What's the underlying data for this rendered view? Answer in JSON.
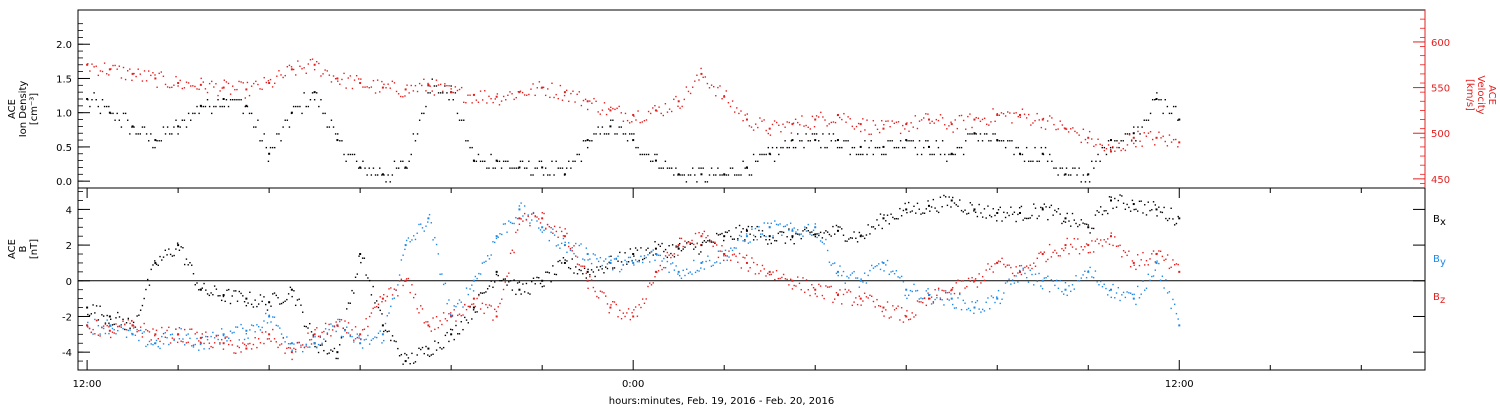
{
  "chart_data": [
    {
      "type": "scatter",
      "panel": "top",
      "ylabel_lines": [
        "ACE",
        "Ion Density",
        "[cm⁻³]"
      ],
      "y_ticks": [
        "0.0",
        "0.5",
        "1.0",
        "1.5",
        "2.0"
      ],
      "ylim": [
        -0.1,
        2.5
      ],
      "y2label_lines": [
        "ACE",
        "Velocity",
        "[km/s]"
      ],
      "y2_ticks": [
        "450",
        "500",
        "550",
        "600"
      ],
      "y2lim": [
        440,
        635
      ],
      "xlim_hours": [
        -0.2,
        29.4
      ],
      "colors": {
        "density": "#000000",
        "velocity": "#e32020"
      },
      "series": [
        {
          "axis": "left",
          "color": "#000000",
          "x_hours": [
            0,
            0.5,
            1,
            1.5,
            2,
            2.5,
            3,
            3.5,
            4,
            4.5,
            5,
            5.5,
            6,
            6.5,
            7,
            7.5,
            8,
            8.5,
            9,
            9.5,
            10,
            10.5,
            11,
            11.5,
            12,
            12.5,
            13,
            13.5,
            14,
            14.5,
            15,
            15.5,
            16,
            16.5,
            17,
            17.5,
            18,
            18.5,
            19,
            19.5,
            20,
            20.5,
            21,
            21.5,
            22,
            22.5,
            23,
            23.5,
            24
          ],
          "values": [
            1.2,
            1.0,
            0.8,
            0.6,
            0.8,
            1.1,
            1.2,
            1.1,
            0.4,
            1.0,
            1.3,
            0.6,
            0.2,
            0.1,
            0.2,
            1.4,
            1.3,
            0.3,
            0.3,
            0.2,
            0.2,
            0.1,
            0.6,
            0.8,
            0.6,
            0.3,
            0.1,
            0.1,
            0.1,
            0.2,
            0.4,
            0.6,
            0.6,
            0.6,
            0.5,
            0.5,
            0.6,
            0.5,
            0.4,
            0.7,
            0.6,
            0.4,
            0.4,
            0.1,
            0.1,
            0.6,
            0.7,
            1.2,
            0.9
          ]
        },
        {
          "axis": "right",
          "color": "#e32020",
          "x_hours": [
            0,
            0.5,
            1,
            1.5,
            2,
            2.5,
            3,
            3.5,
            4,
            4.5,
            5,
            5.5,
            6,
            6.5,
            7,
            7.5,
            8,
            8.5,
            9,
            9.5,
            10,
            10.5,
            11,
            11.5,
            12,
            12.5,
            13,
            13.5,
            14,
            14.5,
            15,
            15.5,
            16,
            16.5,
            17,
            17.5,
            18,
            18.5,
            19,
            19.5,
            20,
            20.5,
            21,
            21.5,
            22,
            22.5,
            23,
            23.5,
            24
          ],
          "values": [
            575,
            570,
            565,
            560,
            555,
            553,
            550,
            548,
            555,
            570,
            575,
            560,
            555,
            550,
            548,
            553,
            545,
            542,
            540,
            545,
            550,
            545,
            535,
            525,
            520,
            525,
            535,
            565,
            540,
            515,
            505,
            510,
            515,
            520,
            510,
            505,
            510,
            515,
            510,
            515,
            520,
            520,
            515,
            505,
            495,
            480,
            495,
            495,
            490
          ]
        }
      ]
    },
    {
      "type": "scatter",
      "panel": "bottom",
      "ylabel_lines": [
        "ACE",
        "B",
        "[nT]"
      ],
      "y_ticks": [
        "-4",
        "-2",
        "0",
        "2",
        "4"
      ],
      "ylim": [
        -5,
        5.2
      ],
      "xlim_hours": [
        -0.2,
        29.4
      ],
      "x_ticks": [
        {
          "hour": 0,
          "label": "12:00"
        },
        {
          "hour": 12,
          "label": "0:00"
        },
        {
          "hour": 24,
          "label": "12:00"
        }
      ],
      "xlabel": "hours:minutes, Feb. 19, 2016 - Feb. 20, 2016",
      "zero_line": true,
      "series": [
        {
          "name": "B",
          "subscript": "x",
          "color": "#000000",
          "x_hours": [
            0,
            0.5,
            1,
            1.5,
            2,
            2.5,
            3,
            3.5,
            4,
            4.5,
            5,
            5.5,
            6,
            6.5,
            7,
            7.5,
            8,
            8.5,
            9,
            9.5,
            10,
            10.5,
            11,
            11.5,
            12,
            12.5,
            13,
            13.5,
            14,
            14.5,
            15,
            15.5,
            16,
            16.5,
            17,
            17.5,
            18,
            18.5,
            19,
            19.5,
            20,
            20.5,
            21,
            21.5,
            22,
            22.5,
            23,
            23.5,
            24
          ],
          "values": [
            -1.5,
            -2.0,
            -2.5,
            1.0,
            2.0,
            -0.5,
            -0.8,
            -1.0,
            -1.2,
            -0.5,
            -3.5,
            -4.0,
            1.5,
            -2.5,
            -4.5,
            -3.8,
            -3.0,
            -1.5,
            0.5,
            -0.5,
            0.0,
            1.0,
            0.5,
            1.0,
            1.5,
            1.8,
            1.8,
            2.0,
            2.5,
            2.8,
            2.5,
            2.5,
            2.6,
            2.8,
            2.5,
            3.5,
            4.0,
            4.2,
            4.5,
            4.0,
            3.8,
            3.8,
            4.0,
            3.5,
            3.0,
            4.5,
            4.3,
            4.0,
            3.5
          ]
        },
        {
          "name": "B",
          "subscript": "y",
          "color": "#1e88e5",
          "x_hours": [
            0,
            0.5,
            1,
            1.5,
            2,
            2.5,
            3,
            3.5,
            4,
            4.5,
            5,
            5.5,
            6,
            6.5,
            7,
            7.5,
            8,
            8.5,
            9,
            9.5,
            10,
            10.5,
            11,
            11.5,
            12,
            12.5,
            13,
            13.5,
            14,
            14.5,
            15,
            15.5,
            16,
            16.5,
            17,
            17.5,
            18,
            18.5,
            19,
            19.5,
            20,
            20.5,
            21,
            21.5,
            22,
            22.5,
            23,
            23.5,
            24
          ],
          "values": [
            -2.5,
            -2.5,
            -3.0,
            -3.5,
            -3.0,
            -3.5,
            -3.0,
            -2.8,
            -2.0,
            -3.5,
            -3.5,
            -2.5,
            -3.5,
            -3.0,
            2.0,
            3.5,
            -2.0,
            0.0,
            2.5,
            4.0,
            3.0,
            2.0,
            1.5,
            1.0,
            1.0,
            1.5,
            0.5,
            1.0,
            1.5,
            2.5,
            3.0,
            2.8,
            3.0,
            0.5,
            0.0,
            1.0,
            -0.5,
            -0.8,
            -1.0,
            -1.5,
            -1.0,
            0.5,
            0.0,
            -0.5,
            0.5,
            -0.5,
            -1.0,
            1.0,
            -2.5
          ]
        },
        {
          "name": "B",
          "subscript": "z",
          "color": "#e32020",
          "x_hours": [
            0,
            0.5,
            1,
            1.5,
            2,
            2.5,
            3,
            3.5,
            4,
            4.5,
            5,
            5.5,
            6,
            6.5,
            7,
            7.5,
            8,
            8.5,
            9,
            9.5,
            10,
            10.5,
            11,
            11.5,
            12,
            12.5,
            13,
            13.5,
            14,
            14.5,
            15,
            15.5,
            16,
            16.5,
            17,
            17.5,
            18,
            18.5,
            19,
            19.5,
            20,
            20.5,
            21,
            21.5,
            22,
            22.5,
            23,
            23.5,
            24
          ],
          "values": [
            -2.5,
            -2.8,
            -2.5,
            -3.0,
            -3.0,
            -3.2,
            -3.5,
            -3.8,
            -3.0,
            -4.0,
            -3.0,
            -2.5,
            -3.0,
            -1.0,
            0.0,
            -2.5,
            -2.0,
            -1.0,
            -2.0,
            3.5,
            3.5,
            2.5,
            0.0,
            -1.5,
            -2.0,
            0.5,
            2.0,
            2.5,
            1.5,
            1.0,
            0.5,
            0.0,
            -0.5,
            -0.8,
            -1.0,
            -1.5,
            -2.0,
            -1.0,
            -0.5,
            0.0,
            1.0,
            0.5,
            1.5,
            2.0,
            2.0,
            2.5,
            1.0,
            1.5,
            0.5
          ]
        }
      ]
    }
  ]
}
